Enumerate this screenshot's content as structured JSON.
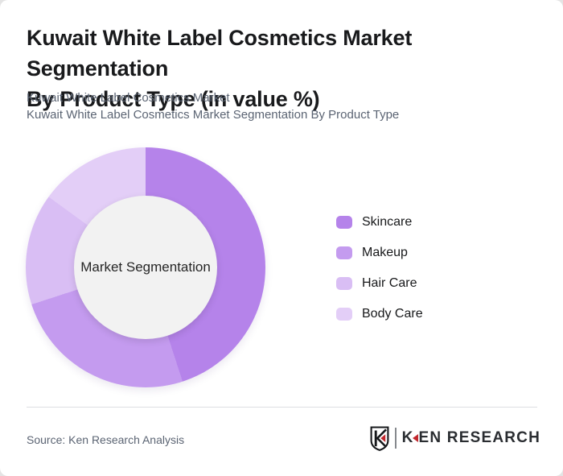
{
  "page": {
    "background": "#e4e4e4",
    "card_background": "#ffffff"
  },
  "header": {
    "title_line1": "Kuwait White Label Cosmetics Market Segmentation",
    "title_line2": "By Product Type (in value %)",
    "subtitle_line1": "Kuwait White Label Cosmetics Market",
    "subtitle_line2": "Kuwait White Label Cosmetics Market Segmentation By Product Type"
  },
  "chart_data": {
    "type": "pie",
    "variant": "donut",
    "title": "Kuwait White Label Cosmetics Market Segmentation By Product Type (in value %)",
    "center_label": "Market Segmentation",
    "categories": [
      "Skincare",
      "Makeup",
      "Hair Care",
      "Body Care"
    ],
    "values": [
      45,
      25,
      15,
      15
    ],
    "unit": "%",
    "colors": [
      "#b583ea",
      "#c49bef",
      "#d9bef4",
      "#e3cef7"
    ],
    "hole_color": "#f2f2f2",
    "start_angle_deg": 0,
    "direction": "clockwise",
    "legend_position": "right",
    "data_labels_shown": false
  },
  "footer": {
    "source": "Source: Ken Research Analysis",
    "logo": {
      "shield_letter": "K",
      "wordmark_k": "K",
      "wordmark_rest": "EN RESEARCH",
      "accent_color": "#c1272d",
      "text_color": "#2a2d31"
    }
  }
}
